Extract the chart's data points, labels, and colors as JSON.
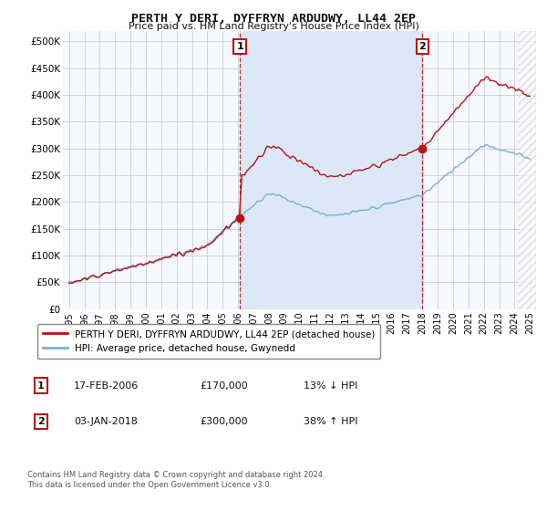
{
  "title": "PERTH Y DERI, DYFFRYN ARDUDWY, LL44 2EP",
  "subtitle": "Price paid vs. HM Land Registry's House Price Index (HPI)",
  "ylabel_ticks": [
    "£0",
    "£50K",
    "£100K",
    "£150K",
    "£200K",
    "£250K",
    "£300K",
    "£350K",
    "£400K",
    "£450K",
    "£500K"
  ],
  "ytick_values": [
    0,
    50000,
    100000,
    150000,
    200000,
    250000,
    300000,
    350000,
    400000,
    450000,
    500000
  ],
  "ylim": [
    0,
    520000
  ],
  "xlim_start": 1994.6,
  "xlim_end": 2025.4,
  "background_color": "#ffffff",
  "plot_bg": "#f5f8ff",
  "shaded_bg": "#dce8f8",
  "grid_color": "#cccccc",
  "hpi_color": "#7dadd4",
  "price_color": "#bb1111",
  "marker1_x": 2006.12,
  "marker2_x": 2018.01,
  "marker1_price": 170000,
  "marker2_price": 300000,
  "legend_label1": "PERTH Y DERI, DYFFRYN ARDUDWY, LL44 2EP (detached house)",
  "legend_label2": "HPI: Average price, detached house, Gwynedd",
  "annotation1_label": "1",
  "annotation2_label": "2",
  "table_row1": [
    "1",
    "17-FEB-2006",
    "£170,000",
    "13% ↓ HPI"
  ],
  "table_row2": [
    "2",
    "03-JAN-2018",
    "£300,000",
    "38% ↑ HPI"
  ],
  "footer1": "Contains HM Land Registry data © Crown copyright and database right 2024.",
  "footer2": "This data is licensed under the Open Government Licence v3.0."
}
